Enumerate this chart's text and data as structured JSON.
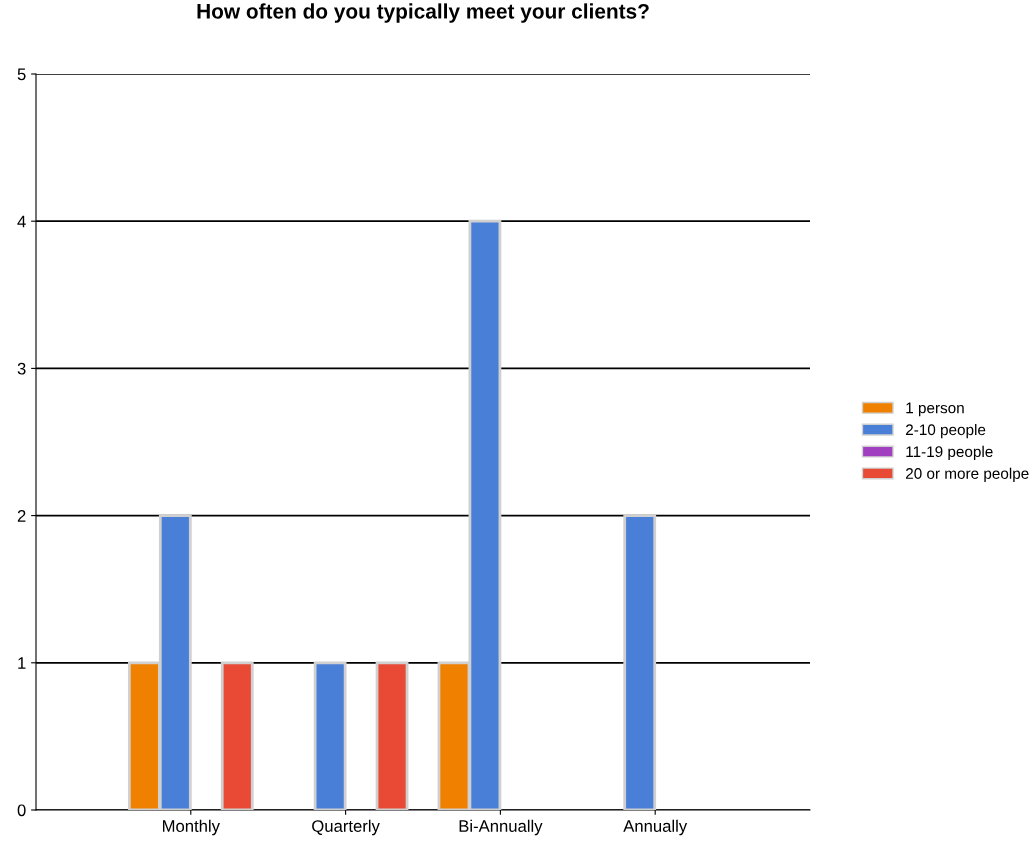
{
  "chart_data": {
    "type": "bar",
    "title": "How often do you typically meet your clients?",
    "categories": [
      "Monthly",
      "Quarterly",
      "Bi-Annually",
      "Annually"
    ],
    "series": [
      {
        "name": "1 person",
        "color": "#f08000",
        "values": [
          1,
          0,
          1,
          0
        ]
      },
      {
        "name": "2-10 people",
        "color": "#4a7fd8",
        "values": [
          2,
          1,
          4,
          2
        ]
      },
      {
        "name": "11-19 people",
        "color": "#a040c0",
        "values": [
          0,
          0,
          0,
          0
        ]
      },
      {
        "name": "20 or more peolpe",
        "color": "#e84a35",
        "values": [
          1,
          1,
          0,
          0
        ]
      }
    ],
    "ylim": [
      0,
      5
    ],
    "yticks": [
      0,
      1,
      2,
      3,
      4,
      5
    ],
    "grid": "y",
    "legend": "right"
  }
}
